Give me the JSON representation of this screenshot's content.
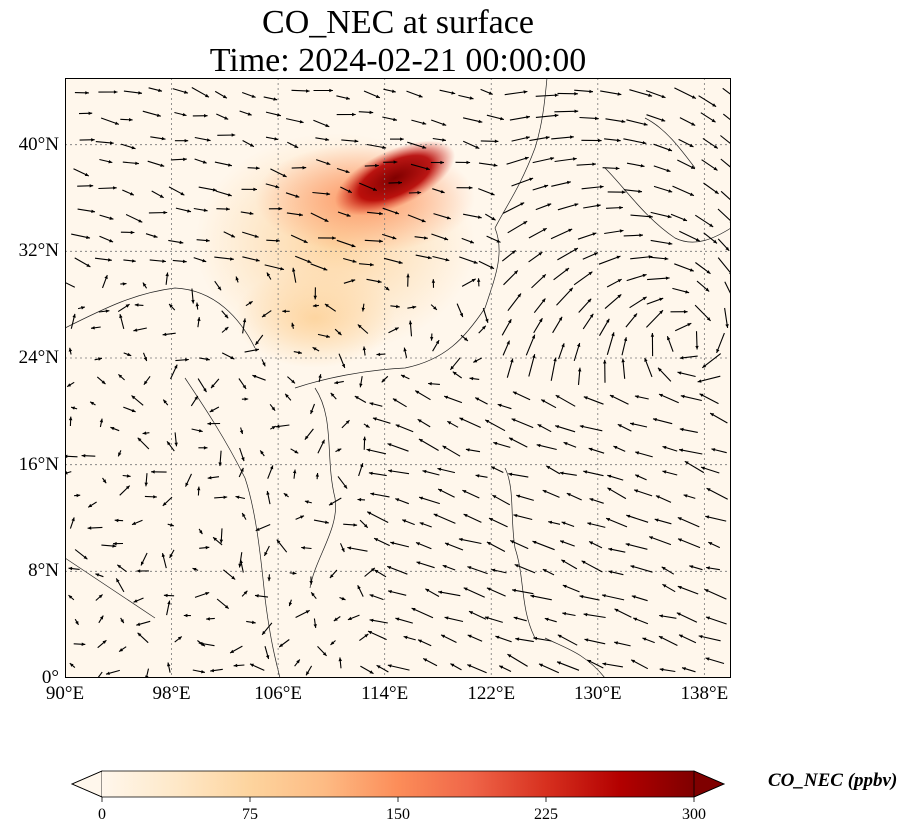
{
  "title": {
    "line1": "CO_NEC at surface",
    "line2": "Time: 2024-02-21 00:00:00"
  },
  "map": {
    "variable": "CO_NEC",
    "lon_range": [
      90,
      140
    ],
    "lat_range": [
      0,
      45
    ],
    "lon_ticks": [
      {
        "value": 90,
        "label": "90°E"
      },
      {
        "value": 98,
        "label": "98°E"
      },
      {
        "value": 106,
        "label": "106°E"
      },
      {
        "value": 114,
        "label": "114°E"
      },
      {
        "value": 122,
        "label": "122°E"
      },
      {
        "value": 130,
        "label": "130°E"
      },
      {
        "value": 138,
        "label": "138°E"
      }
    ],
    "lat_ticks": [
      {
        "value": 0,
        "label": "0°"
      },
      {
        "value": 8,
        "label": "8°N"
      },
      {
        "value": 16,
        "label": "16°N"
      },
      {
        "value": 24,
        "label": "24°N"
      },
      {
        "value": 32,
        "label": "32°N"
      },
      {
        "value": 40,
        "label": "40°N"
      }
    ],
    "gridlines": true,
    "wind_vectors": true
  },
  "colorbar": {
    "label": "CO_NEC (ppbv)",
    "min": 0,
    "max": 300,
    "extend": "both",
    "colormap": "OrRd",
    "colors": [
      "#fff7ec",
      "#fee8c8",
      "#fdd49e",
      "#fdbb84",
      "#fc8d59",
      "#ef6548",
      "#d7301f",
      "#b30000",
      "#7f0000"
    ],
    "ticks": [
      {
        "value": 0,
        "label": "0"
      },
      {
        "value": 75,
        "label": "75"
      },
      {
        "value": 150,
        "label": "150"
      },
      {
        "value": 225,
        "label": "225"
      },
      {
        "value": 300,
        "label": "300"
      }
    ]
  }
}
